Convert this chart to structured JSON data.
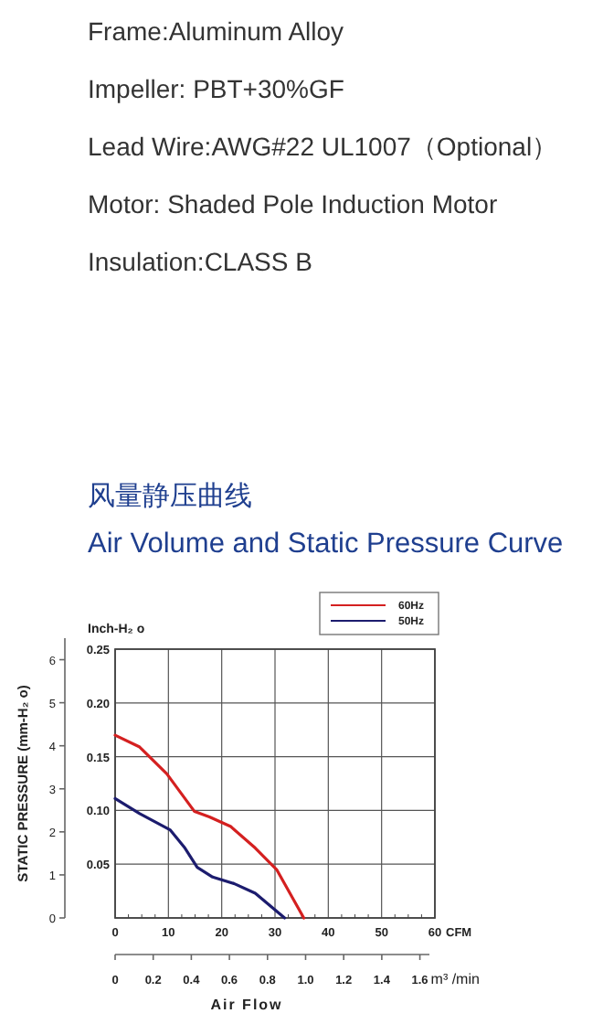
{
  "chart_data": {
    "type": "line",
    "title": "风量静压曲线",
    "subtitle": "Air Volume and Static Pressure Curve",
    "annotations": [
      "Frame:Aluminum Alloy",
      "Impeller: PBT+30%GF",
      "Lead Wire:AWG#22 UL1007（Optional）",
      "Motor: Shaded Pole Induction Motor",
      "Insulation:CLASS B",
      "Air Flow"
    ],
    "xlabel": "CFM",
    "ylabel": "Inch-H₂ o",
    "y2label": "STATIC PRESSURE (mm-H₂ o)",
    "x2label": "m³ /min",
    "xlim": [
      0,
      60
    ],
    "xticks": [
      0,
      10,
      20,
      30,
      40,
      50,
      60
    ],
    "ylim": [
      0,
      0.25
    ],
    "yticks": [
      {
        "value": 0,
        "label": null
      },
      {
        "value": 0.05,
        "label": "0.05"
      },
      {
        "value": 0.1,
        "label": "0.10"
      },
      {
        "value": 0.15,
        "label": "0.15"
      },
      {
        "value": 0.2,
        "label": "0.20"
      },
      {
        "value": 0.25,
        "label": "0.25"
      }
    ],
    "y2lim": [
      0,
      6.5
    ],
    "y2ticks": [
      0,
      1,
      2,
      3,
      4,
      5,
      6
    ],
    "x2lim": [
      0,
      1.65
    ],
    "x2ticks": [
      0,
      {
        "value": 0.2,
        "label": "0.2"
      },
      {
        "value": 0.4,
        "label": "0.4"
      },
      {
        "value": 0.6,
        "label": "0.6"
      },
      {
        "value": 0.8,
        "label": "0.8"
      },
      {
        "value": 1,
        "label": "1.0"
      },
      {
        "value": 1.2,
        "label": "1.2"
      },
      {
        "value": 1.4,
        "label": "1.4"
      },
      {
        "value": 1.6,
        "label": "1.6"
      }
    ],
    "grid": true,
    "legend": "top right",
    "line_style": "solid",
    "series": [
      {
        "name": "60Hz",
        "color": "#d42020",
        "x": [
          0,
          4.6,
          9.7,
          14.9,
          17.7,
          21.7,
          26.3,
          30.3,
          35.4
        ],
        "values": [
          0.17,
          0.159,
          0.134,
          0.099,
          0.094,
          0.085,
          0.065,
          0.045,
          0
        ]
      },
      {
        "name": "50Hz",
        "color": "#1c1c6e",
        "x": [
          0,
          4.6,
          10.3,
          13.1,
          15.4,
          18.3,
          22.3,
          26.3,
          31.8
        ],
        "values": [
          0.111,
          0.097,
          0.082,
          0.065,
          0.047,
          0.038,
          0.032,
          0.023,
          0
        ]
      }
    ]
  }
}
